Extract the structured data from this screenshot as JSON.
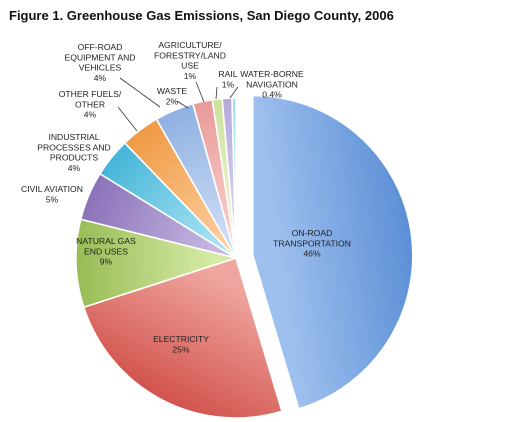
{
  "chart_data": {
    "type": "pie",
    "title": "Figure 1. Greenhouse Gas Emissions, San Diego County, 2006",
    "start_angle_deg": 0,
    "direction": "clockwise",
    "exploded_slice": "ON-ROAD TRANSPORTATION",
    "slices": [
      {
        "label": "ON-ROAD TRANSPORTATION",
        "lines": [
          "ON-ROAD",
          "TRANSPORTATION"
        ],
        "value": 46,
        "value_text": "46%",
        "color": "#5B8FD6",
        "color_light": "#9EC0EE"
      },
      {
        "label": "ELECTRICITY",
        "lines": [
          "ELECTRICITY"
        ],
        "value": 25,
        "value_text": "25%",
        "color": "#D2524C",
        "color_light": "#F0A6A0"
      },
      {
        "label": "NATURAL GAS END USES",
        "lines": [
          "NATURAL GAS",
          "END USES"
        ],
        "value": 9,
        "value_text": "9%",
        "color": "#98BC55",
        "color_light": "#D5EAA4"
      },
      {
        "label": "CIVIL AVIATION",
        "lines": [
          "CIVIL AVIATION"
        ],
        "value": 5,
        "value_text": "5%",
        "color": "#8A72B8",
        "color_light": "#C5B6E0"
      },
      {
        "label": "INDUSTRIAL PROCESSES AND PRODUCTS",
        "lines": [
          "INDUSTRIAL",
          "PROCESSES AND",
          "PRODUCTS"
        ],
        "value": 4,
        "value_text": "4%",
        "color": "#45B5D8",
        "color_light": "#A8E2F3"
      },
      {
        "label": "OTHER FUELS/OTHER",
        "lines": [
          "OTHER FUELS/",
          "OTHER"
        ],
        "value": 4,
        "value_text": "4%",
        "color": "#F09A45",
        "color_light": "#FBCB98"
      },
      {
        "label": "OFF-ROAD EQUIPMENT AND VEHICLES",
        "lines": [
          "OFF-ROAD",
          "EQUIPMENT AND",
          "VEHICLES"
        ],
        "value": 4,
        "value_text": "4%",
        "color": "#8FB0E2",
        "color_light": "#CCDCF5"
      },
      {
        "label": "WASTE",
        "lines": [
          "WASTE"
        ],
        "value": 2,
        "value_text": "2%",
        "color": "#E89A98",
        "color_light": "#F8CFCC"
      },
      {
        "label": "AGRICULTURE/FORESTRY/LAND USE",
        "lines": [
          "AGRICULTURE/",
          "FORESTRY/LAND",
          "USE"
        ],
        "value": 1,
        "value_text": "1%",
        "color": "#CDE19C",
        "color_light": "#EEF6D7"
      },
      {
        "label": "RAIL",
        "lines": [
          "RAIL"
        ],
        "value": 1,
        "value_text": "1%",
        "color": "#B6A8DA",
        "color_light": "#E0DAF2"
      },
      {
        "label": "WATER-BORNE NAVIGATION",
        "lines": [
          "WATER-BORNE",
          "NAVIGATION"
        ],
        "value": 0.4,
        "value_text": "0.4%",
        "color": "#9EDDF0",
        "color_light": "#D6F2FA"
      }
    ]
  }
}
